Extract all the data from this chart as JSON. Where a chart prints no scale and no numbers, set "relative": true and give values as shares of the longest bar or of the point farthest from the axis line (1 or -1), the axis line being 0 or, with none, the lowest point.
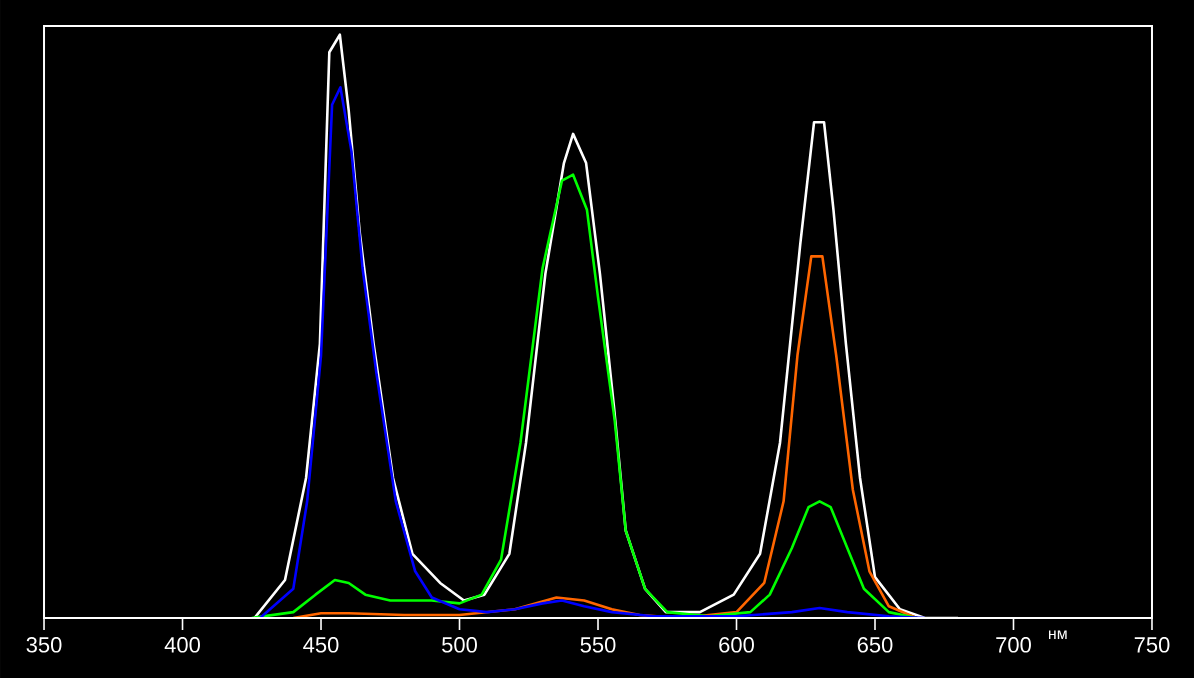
{
  "chart_data": {
    "type": "line",
    "relative": true,
    "xlabel": "нм",
    "xlim": [
      350,
      750
    ],
    "xticks": [
      350,
      400,
      450,
      500,
      550,
      600,
      650,
      700,
      750
    ],
    "marker": "none",
    "line_style": "solid",
    "series": [
      {
        "color": "#ffffff",
        "x": [
          426,
          437,
          444.6,
          449.6,
          453,
          456.8,
          460,
          464,
          469,
          476,
          483,
          493,
          501.6,
          509,
          518,
          524,
          531,
          537.7,
          541,
          545.7,
          550.7,
          555.8,
          560,
          567,
          574.5,
          586.8,
          599,
          608.5,
          615.7,
          623,
          628,
          631.6,
          635,
          639.5,
          644.6,
          650,
          659,
          668,
          680
        ],
        "values": [
          0,
          0.065,
          0.24,
          0.47,
          0.97,
          1,
          0.87,
          0.66,
          0.47,
          0.24,
          0.11,
          0.06,
          0.03,
          0.04,
          0.11,
          0.3,
          0.59,
          0.78,
          0.83,
          0.78,
          0.59,
          0.36,
          0.15,
          0.05,
          0.01,
          0.01,
          0.04,
          0.11,
          0.3,
          0.64,
          0.85,
          0.85,
          0.7,
          0.47,
          0.24,
          0.07,
          0.015,
          0,
          0
        ]
      },
      {
        "color": "#ff6600",
        "x": [
          440,
          450,
          460,
          480,
          500,
          520,
          535,
          545,
          555,
          565,
          580,
          600,
          610,
          617,
          622,
          627,
          631,
          636,
          642,
          648,
          655,
          665
        ],
        "values": [
          0,
          0.008,
          0.008,
          0.005,
          0.005,
          0.015,
          0.035,
          0.03,
          0.015,
          0.005,
          0,
          0.01,
          0.06,
          0.2,
          0.45,
          0.62,
          0.62,
          0.45,
          0.22,
          0.08,
          0.02,
          0
        ]
      },
      {
        "color": "#00ff00",
        "x": [
          425,
          440,
          448,
          455,
          460,
          466,
          475,
          490,
          500,
          508,
          515,
          522,
          530,
          537,
          541,
          546,
          550,
          556,
          560,
          567,
          575,
          590,
          605,
          612,
          620,
          626,
          630,
          634,
          640,
          646,
          655,
          665
        ],
        "values": [
          0,
          0.01,
          0.04,
          0.065,
          0.06,
          0.04,
          0.03,
          0.03,
          0.025,
          0.04,
          0.1,
          0.3,
          0.6,
          0.75,
          0.76,
          0.7,
          0.55,
          0.34,
          0.15,
          0.05,
          0.01,
          0.003,
          0.01,
          0.04,
          0.12,
          0.19,
          0.2,
          0.19,
          0.12,
          0.05,
          0.01,
          0
        ]
      },
      {
        "color": "#0000ff",
        "x": [
          428,
          440,
          445,
          450,
          454,
          457,
          461,
          465,
          470,
          477,
          484,
          490,
          500,
          510,
          520,
          530,
          537,
          545,
          555,
          570,
          600,
          620,
          630,
          640,
          655,
          668
        ],
        "values": [
          0,
          0.05,
          0.2,
          0.45,
          0.88,
          0.91,
          0.8,
          0.6,
          0.42,
          0.2,
          0.08,
          0.035,
          0.015,
          0.01,
          0.015,
          0.025,
          0.03,
          0.02,
          0.01,
          0.003,
          0.003,
          0.01,
          0.017,
          0.01,
          0.003,
          0
        ]
      }
    ]
  }
}
